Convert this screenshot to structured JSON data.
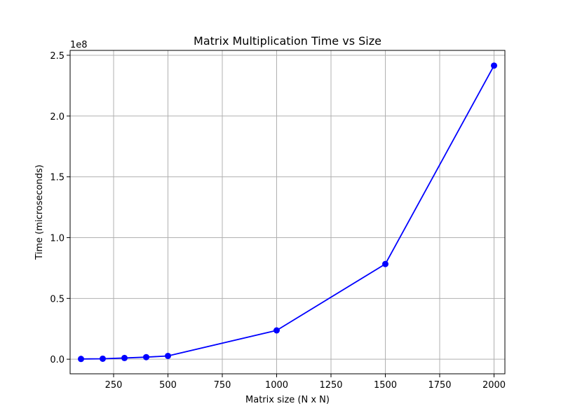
{
  "chart_data": {
    "type": "line",
    "title": "Matrix Multiplication Time vs Size",
    "xlabel": "Matrix size (N x N)",
    "ylabel": "Time (microseconds)",
    "y_offset_label": "1e8",
    "x_scale_factor": 1,
    "y_scale_factor": 100000000,
    "xlim": [
      50,
      2050
    ],
    "ylim": [
      -0.12,
      2.54
    ],
    "xticks": [
      250,
      500,
      750,
      1000,
      1250,
      1500,
      1750,
      2000
    ],
    "xtick_labels": [
      "250",
      "500",
      "750",
      "1000",
      "1250",
      "1500",
      "1750",
      "2000"
    ],
    "yticks": [
      0.0,
      0.5,
      1.0,
      1.5,
      2.0,
      2.5
    ],
    "ytick_labels": [
      "0.0",
      "0.5",
      "1.0",
      "1.5",
      "2.0",
      "2.5"
    ],
    "grid": true,
    "series": [
      {
        "color": "#0000ff",
        "marker": "circle",
        "x": [
          100,
          200,
          300,
          400,
          500,
          1000,
          1500,
          2000
        ],
        "y": [
          0.002,
          0.004,
          0.01,
          0.017,
          0.027,
          0.237,
          0.783,
          2.415
        ]
      }
    ]
  }
}
